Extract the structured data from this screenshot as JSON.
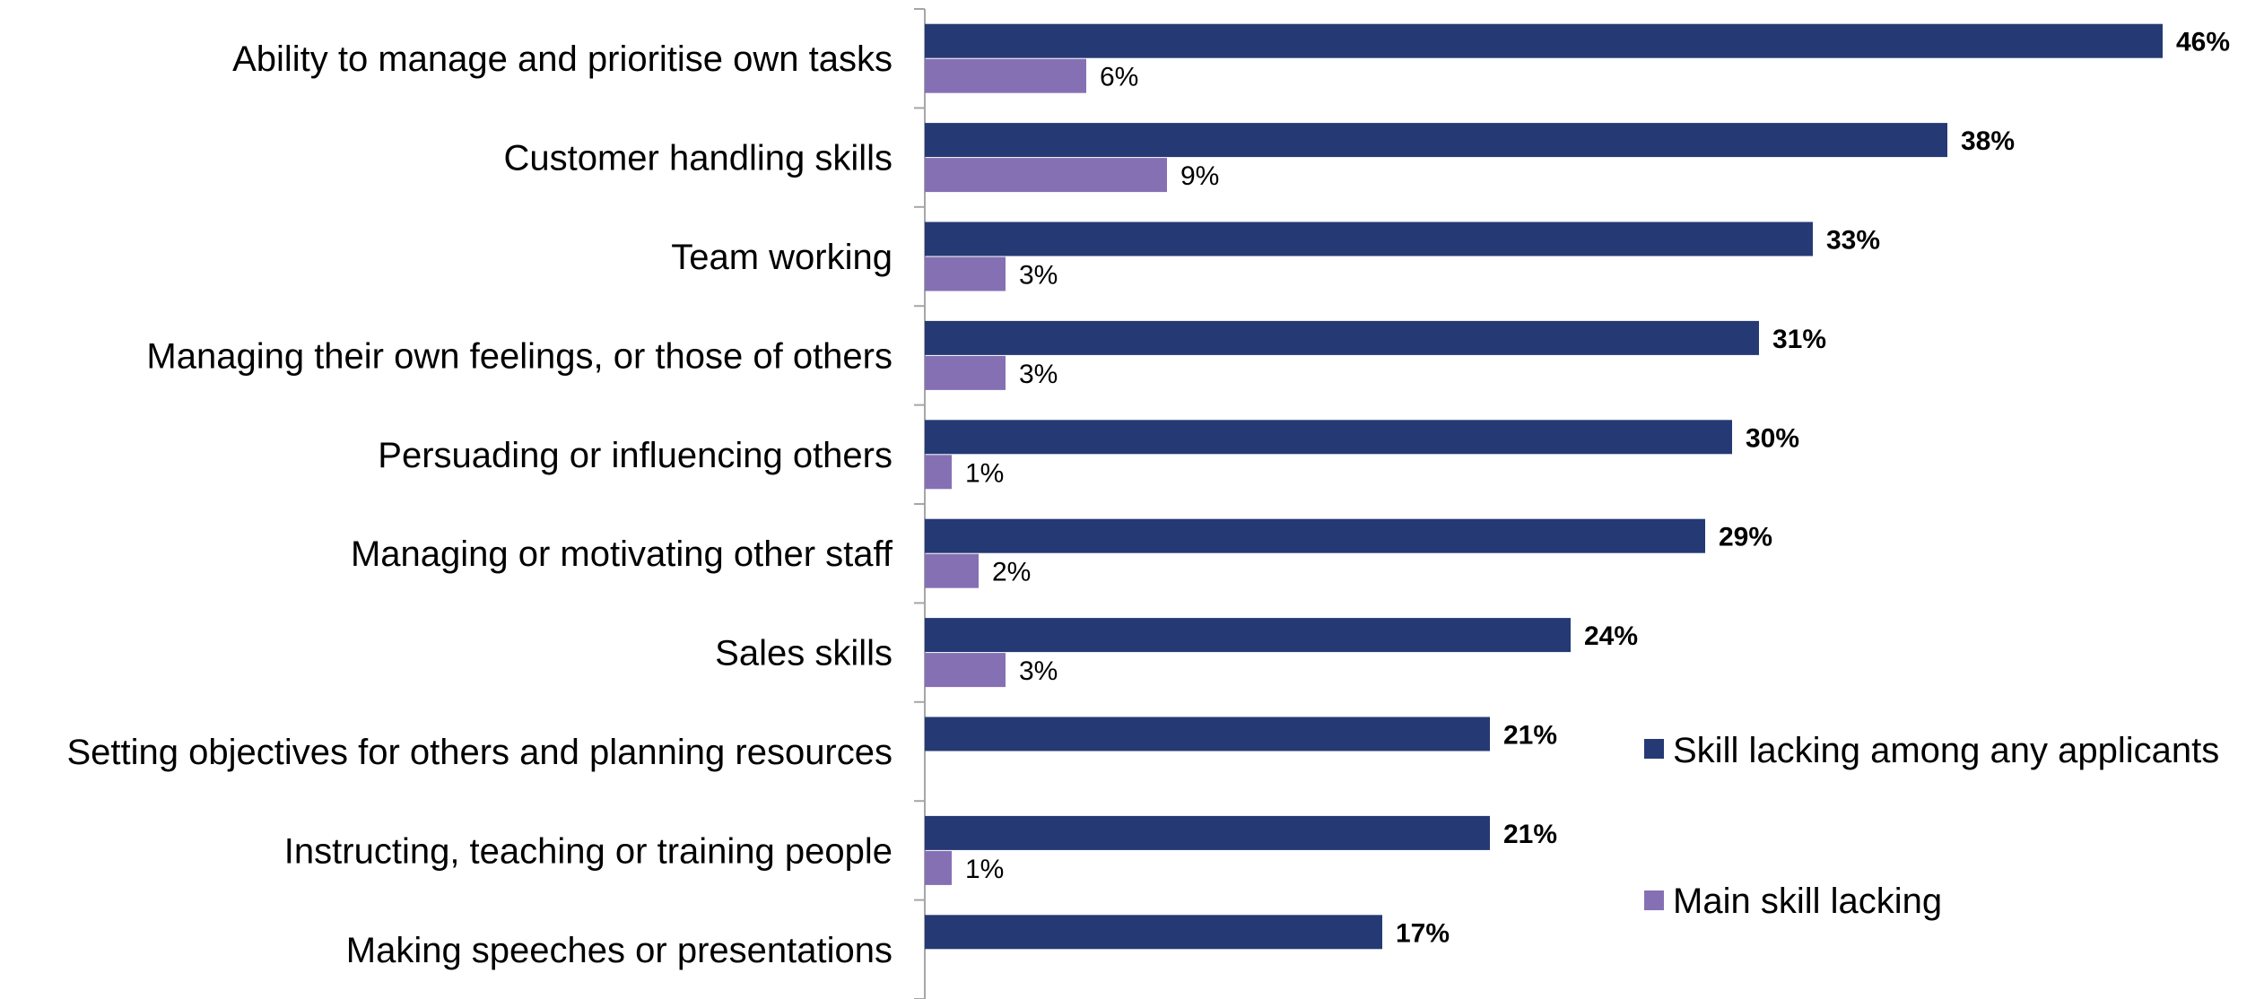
{
  "chart_data": {
    "type": "bar",
    "orientation": "horizontal",
    "categories": [
      "Ability to manage and prioritise own tasks",
      "Customer handling skills",
      "Team working",
      "Managing their own feelings, or those of others",
      "Persuading or influencing others",
      "Managing or motivating other staff",
      "Sales skills",
      "Setting objectives for others and planning resources",
      "Instructing, teaching or training people",
      "Making speeches or presentations"
    ],
    "series": [
      {
        "name": "Skill lacking among any applicants",
        "color": "#253a74",
        "values": [
          46,
          38,
          33,
          31,
          30,
          29,
          24,
          21,
          21,
          17
        ],
        "labels": [
          "46%",
          "38%",
          "33%",
          "31%",
          "30%",
          "29%",
          "24%",
          "21%",
          "21%",
          "17%"
        ]
      },
      {
        "name": "Main skill lacking",
        "color": "#8670b4",
        "values": [
          6,
          9,
          3,
          3,
          1,
          2,
          3,
          null,
          1,
          null
        ],
        "labels": [
          "6%",
          "9%",
          "3%",
          "3%",
          "1%",
          "2%",
          "3%",
          "",
          "1%",
          ""
        ]
      }
    ],
    "xlim": [
      0,
      50
    ],
    "grid": false,
    "legend_position": "right"
  }
}
